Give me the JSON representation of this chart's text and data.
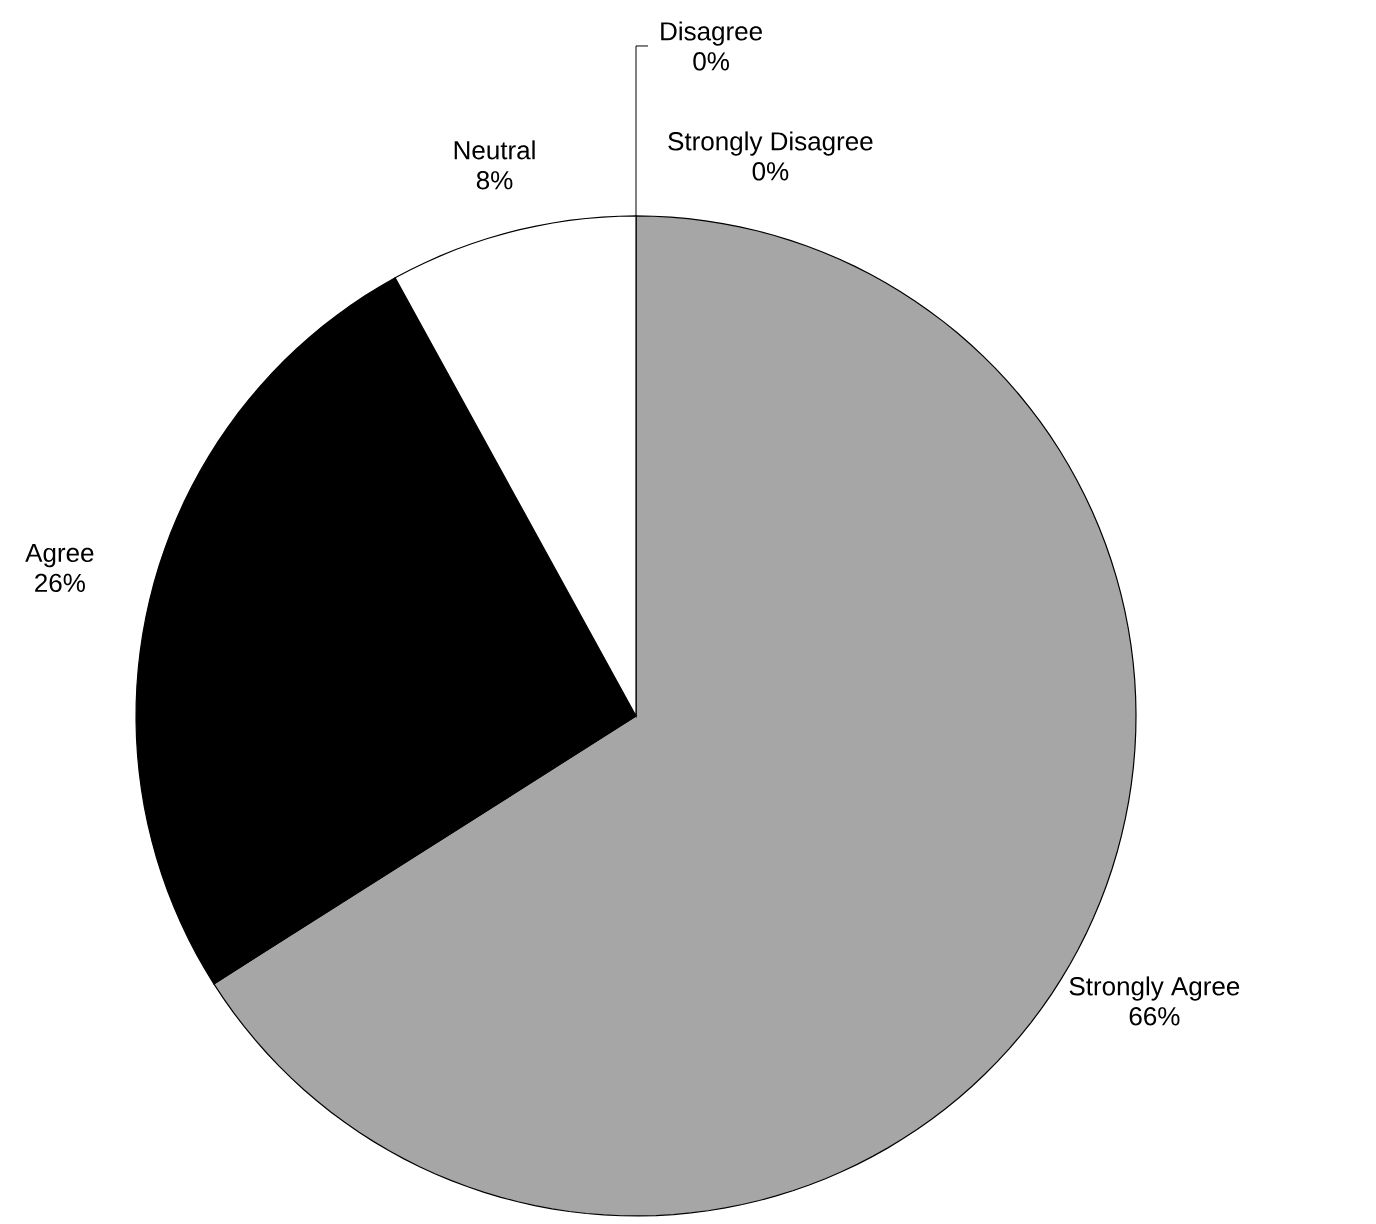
{
  "chart_data": {
    "type": "pie",
    "categories": [
      "Strongly Agree",
      "Agree",
      "Neutral",
      "Strongly Disagree",
      "Disagree"
    ],
    "values": [
      66,
      26,
      8,
      0,
      0
    ],
    "value_labels": [
      "66%",
      "26%",
      "8%",
      "0%",
      "0%"
    ],
    "colors": [
      "#a6a6a6",
      "#000000",
      "#ffffff",
      "#ffffff",
      "#ffffff"
    ]
  }
}
